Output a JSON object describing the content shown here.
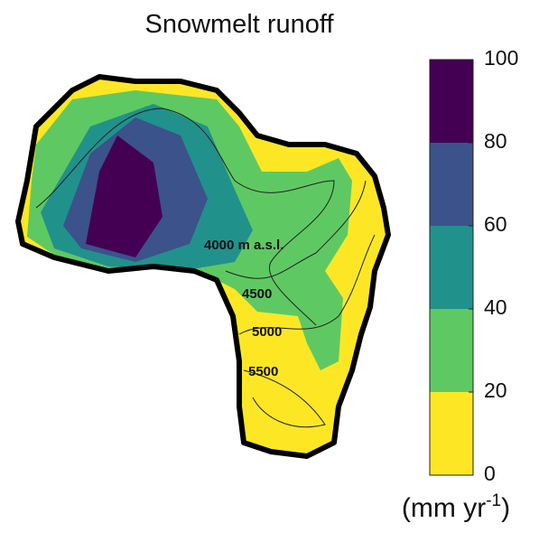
{
  "title": "Snowmelt runoff",
  "contour_labels": [
    "4000 m a.s.l.",
    "4500",
    "5000",
    "5500"
  ],
  "colorbar": {
    "lim": [
      0,
      100
    ],
    "ticks": [
      0,
      20,
      40,
      60,
      80,
      100
    ],
    "colors": [
      "#fde725",
      "#5ec962",
      "#21918c",
      "#3b528b",
      "#440154"
    ],
    "unit": {
      "text": "(mm yr",
      "sup": "-1",
      "close": ")"
    }
  }
}
